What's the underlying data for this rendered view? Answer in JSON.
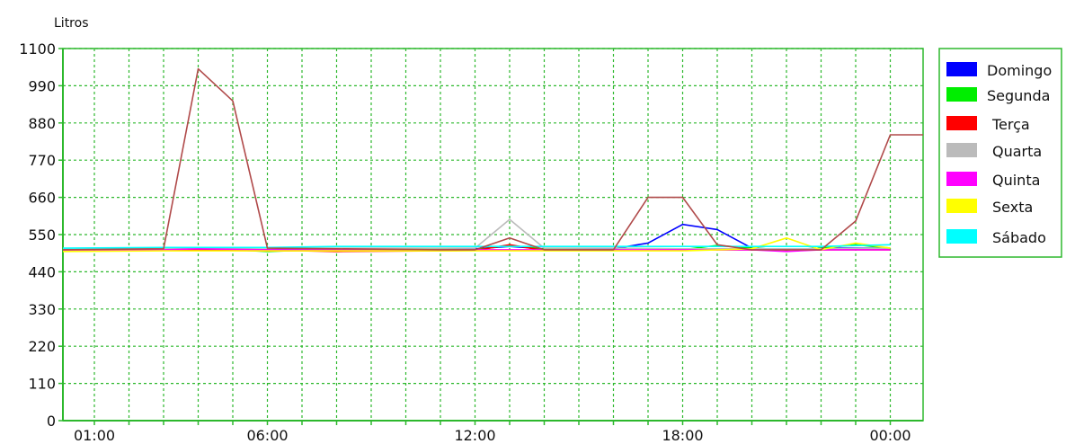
{
  "chart_data": {
    "type": "line",
    "title": "",
    "ylabel": "Litros",
    "xlabel": "",
    "ylim": [
      0,
      1100
    ],
    "yticks": [
      0,
      110,
      220,
      330,
      440,
      550,
      660,
      770,
      880,
      990,
      1100
    ],
    "x_start_hour": 0,
    "x_end_hour": 24,
    "xtick_labels": [
      {
        "hour": 1,
        "label": "01:00"
      },
      {
        "hour": 6,
        "label": "06:00"
      },
      {
        "hour": 12,
        "label": "12:00"
      },
      {
        "hour": 18,
        "label": "18:00"
      },
      {
        "hour": 24,
        "label": "00:00"
      }
    ],
    "grid": true,
    "legend_position": "right",
    "colors": {
      "grid": "#2db82d",
      "axis": "#2db82d",
      "legend_border": "#2db82d"
    },
    "series": [
      {
        "name": "Domingo",
        "color": "#0000ff",
        "values": [
          [
            0,
            508
          ],
          [
            3,
            510
          ],
          [
            4,
            505
          ],
          [
            6,
            505
          ],
          [
            8,
            507
          ],
          [
            12,
            508
          ],
          [
            13,
            515
          ],
          [
            14,
            508
          ],
          [
            16,
            508
          ],
          [
            17,
            525
          ],
          [
            18,
            580
          ],
          [
            19,
            565
          ],
          [
            20,
            510
          ],
          [
            21,
            505
          ],
          [
            22,
            510
          ],
          [
            23,
            510
          ],
          [
            24,
            510
          ]
        ]
      },
      {
        "name": "Segunda",
        "color": "#00ee00",
        "values": [
          [
            0,
            505
          ],
          [
            3,
            508
          ],
          [
            4,
            510
          ],
          [
            5,
            505
          ],
          [
            6,
            500
          ],
          [
            8,
            507
          ],
          [
            11,
            507
          ],
          [
            12,
            505
          ],
          [
            13,
            518
          ],
          [
            14,
            507
          ],
          [
            16,
            505
          ],
          [
            17,
            503
          ],
          [
            18,
            505
          ],
          [
            19,
            518
          ],
          [
            20,
            510
          ],
          [
            21,
            505
          ],
          [
            22,
            510
          ],
          [
            23,
            520
          ],
          [
            24,
            510
          ]
        ]
      },
      {
        "name": "Terça",
        "color": "#ff0000",
        "values": [
          [
            0,
            505
          ],
          [
            3,
            505
          ],
          [
            6,
            502
          ],
          [
            7,
            502
          ],
          [
            8,
            500
          ],
          [
            11,
            502
          ],
          [
            12,
            503
          ],
          [
            13,
            520
          ],
          [
            14,
            503
          ],
          [
            16,
            503
          ],
          [
            18,
            505
          ],
          [
            20,
            505
          ],
          [
            22,
            505
          ],
          [
            24,
            505
          ]
        ]
      },
      {
        "name": "Quarta",
        "color": "#bbbbbb",
        "values": [
          [
            0,
            508
          ],
          [
            3,
            508
          ],
          [
            6,
            510
          ],
          [
            11,
            510
          ],
          [
            12,
            510
          ],
          [
            13,
            595
          ],
          [
            14,
            510
          ],
          [
            16,
            510
          ],
          [
            18,
            508
          ],
          [
            20,
            508
          ],
          [
            22,
            508
          ],
          [
            24,
            510
          ]
        ]
      },
      {
        "name": "Quinta",
        "color": "#ff00ff",
        "values": [
          [
            0,
            505
          ],
          [
            3,
            505
          ],
          [
            4,
            508
          ],
          [
            6,
            505
          ],
          [
            8,
            505
          ],
          [
            12,
            505
          ],
          [
            14,
            505
          ],
          [
            16,
            505
          ],
          [
            18,
            505
          ],
          [
            20,
            505
          ],
          [
            21,
            500
          ],
          [
            22,
            505
          ],
          [
            24,
            505
          ]
        ]
      },
      {
        "name": "Sexta",
        "color": "#ffff00",
        "values": [
          [
            0,
            500
          ],
          [
            3,
            502
          ],
          [
            6,
            502
          ],
          [
            12,
            502
          ],
          [
            16,
            502
          ],
          [
            18,
            502
          ],
          [
            20,
            508
          ],
          [
            21,
            540
          ],
          [
            22,
            505
          ],
          [
            23,
            525
          ],
          [
            24,
            510
          ]
        ]
      },
      {
        "name": "Sábado",
        "color": "#00ffff",
        "values": [
          [
            0,
            510
          ],
          [
            3,
            512
          ],
          [
            4,
            512
          ],
          [
            6,
            512
          ],
          [
            8,
            515
          ],
          [
            12,
            515
          ],
          [
            16,
            515
          ],
          [
            18,
            515
          ],
          [
            20,
            515
          ],
          [
            22,
            515
          ],
          [
            24,
            520
          ]
        ]
      },
      {
        "name": "",
        "color": "#b04a4a",
        "values": [
          [
            0,
            505
          ],
          [
            3,
            508
          ],
          [
            4,
            1040
          ],
          [
            5,
            945
          ],
          [
            6,
            510
          ],
          [
            8,
            508
          ],
          [
            11,
            505
          ],
          [
            12,
            505
          ],
          [
            13,
            540
          ],
          [
            14,
            505
          ],
          [
            16,
            505
          ],
          [
            17,
            660
          ],
          [
            18,
            660
          ],
          [
            19,
            520
          ],
          [
            20,
            505
          ],
          [
            22,
            505
          ],
          [
            23,
            590
          ],
          [
            24,
            845
          ],
          [
            25,
            845
          ]
        ]
      }
    ]
  }
}
